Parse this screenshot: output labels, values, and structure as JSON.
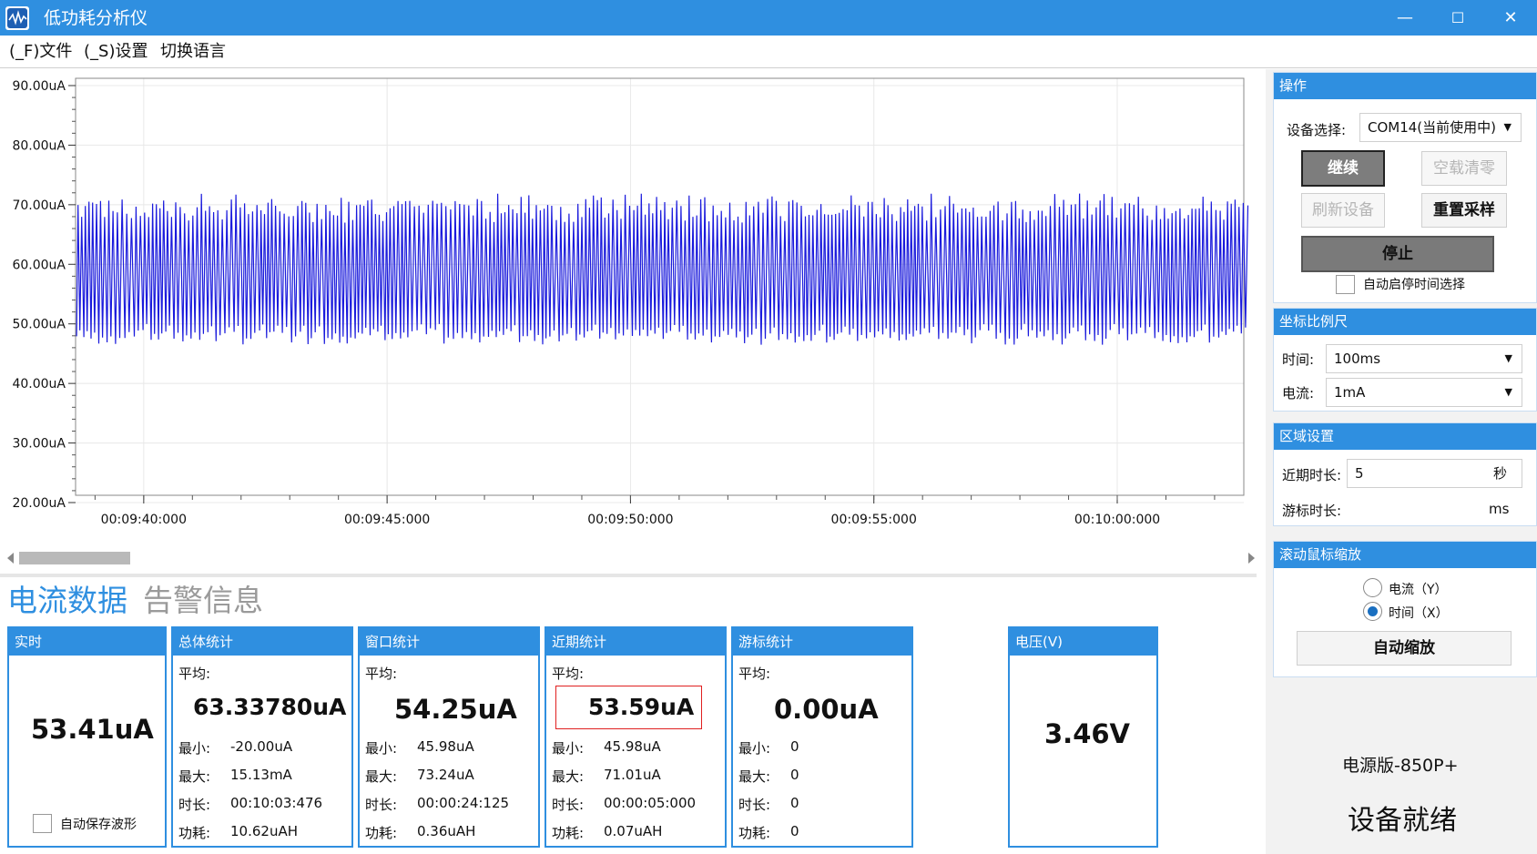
{
  "window": {
    "title": "低功耗分析仪",
    "min": "—",
    "max": "☐",
    "close": "✕"
  },
  "menu": [
    "(_F)文件",
    "(_S)设置",
    "切换语言"
  ],
  "chart_data": {
    "type": "line",
    "y_ticks": [
      "90.00uA",
      "80.00uA",
      "70.00uA",
      "60.00uA",
      "50.00uA",
      "40.00uA",
      "30.00uA",
      "20.00uA"
    ],
    "x_ticks": [
      "00:09:40:000",
      "00:09:45:000",
      "00:09:50:000",
      "00:09:55:000",
      "00:10:00:000"
    ],
    "ylim": [
      20,
      90
    ],
    "xlim_seconds": [
      578.6,
      602.6
    ],
    "series": [
      {
        "color": "#1a1adc",
        "wave": {
          "low": 48,
          "high": 70,
          "period_s": 0.17
        }
      }
    ],
    "grid": true
  },
  "tabs": {
    "current": "电流数据",
    "alarm": "告警信息"
  },
  "cards": {
    "realtime": {
      "title": "实时",
      "value": "53.41uA",
      "autosave": "自动保存波形"
    },
    "total": {
      "title": "总体统计",
      "avg_label": "平均:",
      "avg": "63.33780uA",
      "min": "-20.00uA",
      "max": "15.13mA",
      "dur": "00:10:03:476",
      "power": "10.62uAH"
    },
    "window": {
      "title": "窗口统计",
      "avg_label": "平均:",
      "avg": "54.25uA",
      "min": "45.98uA",
      "max": "73.24uA",
      "dur": "00:00:24:125",
      "power": "0.36uAH"
    },
    "recent": {
      "title": "近期统计",
      "avg_label": "平均:",
      "avg": "53.59uA",
      "min": "45.98uA",
      "max": "71.01uA",
      "dur": "00:00:05:000",
      "power": "0.07uAH"
    },
    "cursor": {
      "title": "游标统计",
      "avg_label": "平均:",
      "avg": "0.00uA",
      "min": "0",
      "max": "0",
      "dur": "0",
      "power": "0"
    },
    "voltage": {
      "title": "电压(V)",
      "value": "3.46V"
    },
    "labels": {
      "min": "最小:",
      "max": "最大:",
      "dur": "时长:",
      "power": "功耗:"
    }
  },
  "sidebar": {
    "operation": {
      "title": "操作",
      "device_label": "设备选择:",
      "device": "COM14(当前使用中)",
      "continue": "继续",
      "zero": "空载清零",
      "refresh": "刷新设备",
      "resample": "重置采样",
      "stop": "停止",
      "auto_stop": "自动启停时间选择"
    },
    "scale": {
      "title": "坐标比例尺",
      "time_label": "时间:",
      "time": "100ms",
      "current_label": "电流:",
      "current": "1mA"
    },
    "region": {
      "title": "区域设置",
      "recent_label": "近期时长:",
      "recent_value": "5",
      "recent_unit": "秒",
      "cursor_label": "游标时长:",
      "cursor_unit": "ms"
    },
    "zoom": {
      "title": "滚动鼠标缩放",
      "opt_y": "电流（Y）",
      "opt_x": "时间（X）",
      "auto": "自动缩放"
    },
    "version": "电源版-850P+",
    "status": "设备就绪"
  }
}
